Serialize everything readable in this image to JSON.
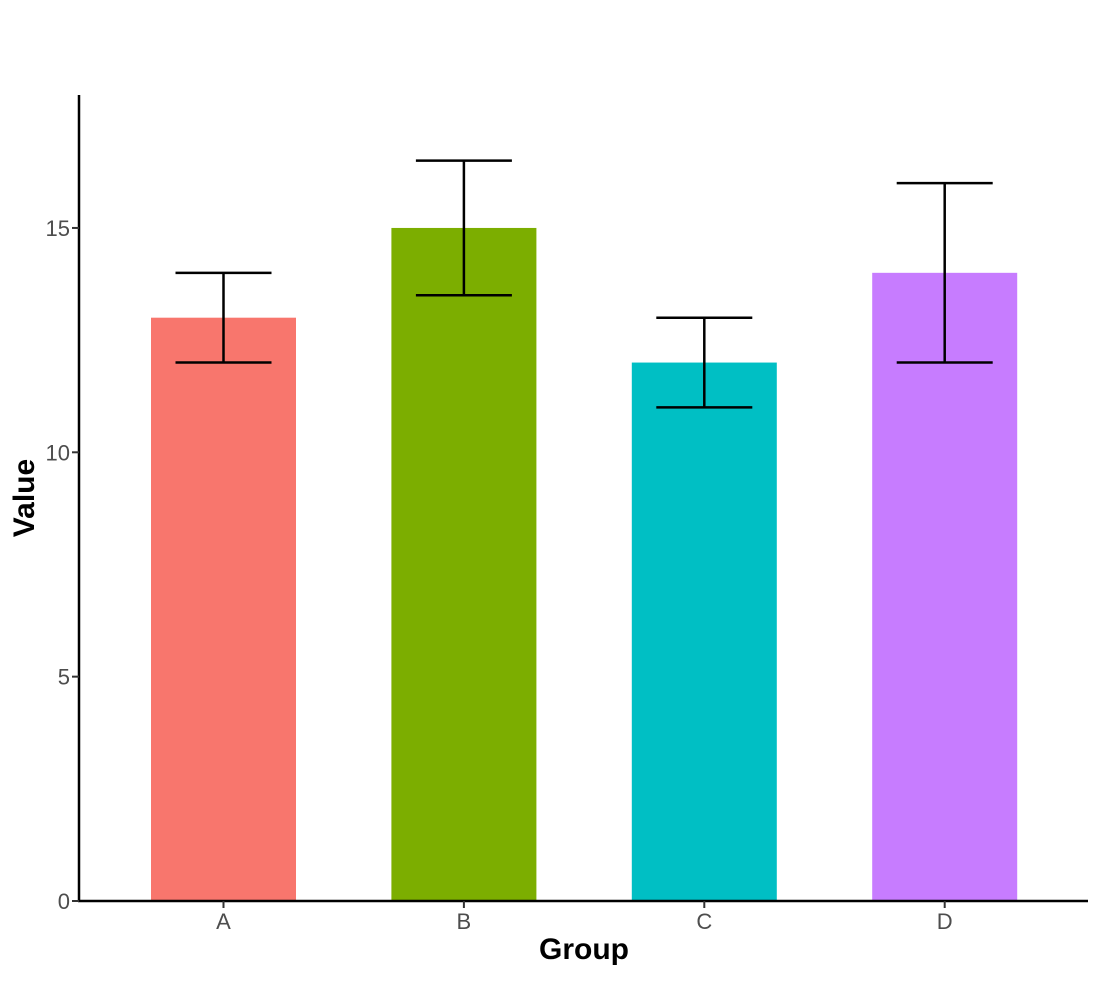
{
  "chart_data": {
    "type": "bar",
    "title": "",
    "xlabel": "Group",
    "ylabel": "Value",
    "categories": [
      "A",
      "B",
      "C",
      "D"
    ],
    "values": [
      13,
      15,
      12,
      14
    ],
    "error_low": [
      12,
      13.5,
      11,
      12
    ],
    "error_high": [
      14,
      16.5,
      13,
      16
    ],
    "colors": [
      "#F8766D",
      "#7CAE00",
      "#00BFC4",
      "#C77CFF"
    ],
    "ylim": [
      0,
      18
    ],
    "yticks": [
      0,
      5,
      10,
      15
    ],
    "grid": false,
    "legend": "none"
  }
}
